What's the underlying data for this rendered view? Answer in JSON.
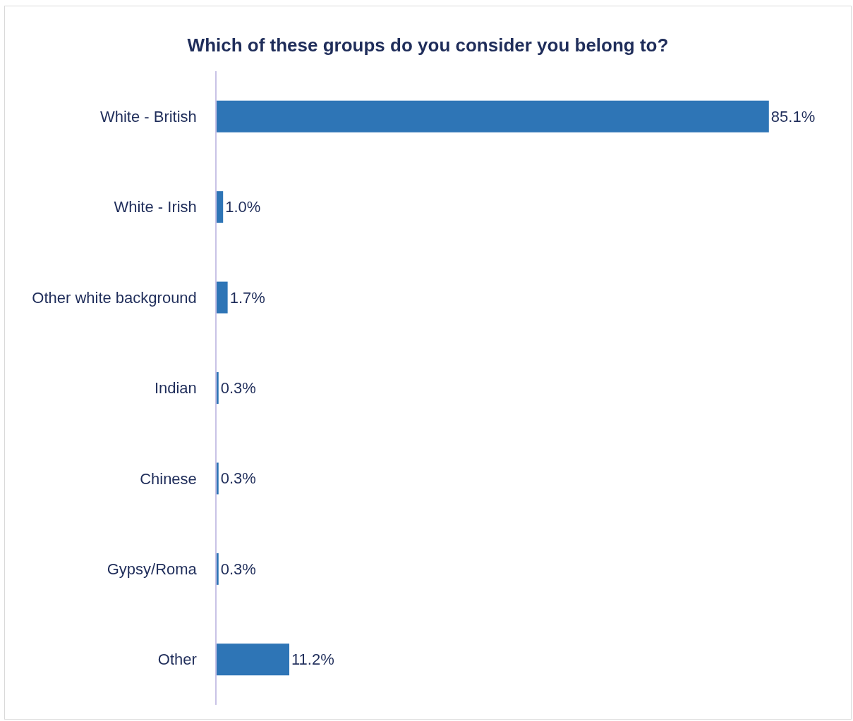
{
  "chart_data": {
    "type": "bar",
    "orientation": "horizontal",
    "title": "Which of these groups do you consider you belong to?",
    "categories": [
      "White - British",
      "White - Irish",
      "Other white background",
      "Indian",
      "Chinese",
      "Gypsy/Roma",
      "Other"
    ],
    "values": [
      85.1,
      1.0,
      1.7,
      0.3,
      0.3,
      0.3,
      11.2
    ],
    "value_labels": [
      "85.1%",
      "1.0%",
      "1.7%",
      "0.3%",
      "0.3%",
      "0.3%",
      "11.2%"
    ],
    "color": "#2e75b6"
  }
}
